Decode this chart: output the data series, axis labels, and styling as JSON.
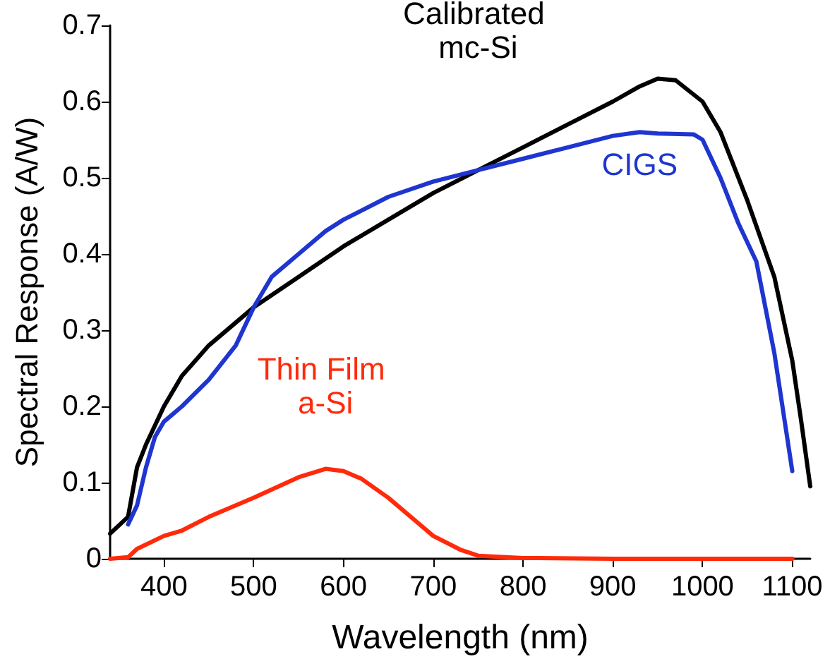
{
  "chart_data": {
    "type": "line",
    "xlabel": "Wavelength (nm)",
    "ylabel": "Spectral Response (A/W)",
    "xlim": [
      340,
      1120
    ],
    "xticks": [
      400,
      500,
      600,
      700,
      800,
      900,
      1000,
      1100
    ],
    "ylim": [
      0,
      0.7
    ],
    "yticks": [
      0,
      0.1,
      0.2,
      0.3,
      0.4,
      0.5,
      0.6,
      0.7
    ],
    "grid": false,
    "legend": false,
    "marker": "none",
    "line_style": "solid",
    "series": [
      {
        "name": "Calibrated mc-Si",
        "color": "#000000",
        "x": [
          340,
          360,
          370,
          380,
          400,
          420,
          450,
          500,
          550,
          600,
          650,
          700,
          750,
          800,
          850,
          900,
          930,
          950,
          970,
          1000,
          1020,
          1050,
          1080,
          1100,
          1110,
          1120
        ],
        "values": [
          0.033,
          0.055,
          0.12,
          0.15,
          0.2,
          0.24,
          0.28,
          0.33,
          0.37,
          0.41,
          0.445,
          0.48,
          0.51,
          0.54,
          0.57,
          0.6,
          0.62,
          0.63,
          0.628,
          0.6,
          0.56,
          0.47,
          0.37,
          0.26,
          0.18,
          0.095
        ]
      },
      {
        "name": "CIGS",
        "color": "#1f35d0",
        "x": [
          360,
          370,
          380,
          390,
          400,
          420,
          450,
          480,
          500,
          520,
          550,
          580,
          600,
          650,
          700,
          750,
          800,
          850,
          900,
          930,
          950,
          990,
          1000,
          1020,
          1040,
          1060,
          1080,
          1100
        ],
        "values": [
          0.045,
          0.07,
          0.12,
          0.16,
          0.18,
          0.2,
          0.235,
          0.28,
          0.33,
          0.37,
          0.4,
          0.43,
          0.445,
          0.475,
          0.495,
          0.51,
          0.525,
          0.54,
          0.555,
          0.56,
          0.558,
          0.557,
          0.55,
          0.5,
          0.44,
          0.39,
          0.27,
          0.115
        ]
      },
      {
        "name": "Thin Film a-Si",
        "color": "#ff2a0a",
        "x": [
          340,
          360,
          370,
          400,
          420,
          450,
          500,
          550,
          580,
          600,
          620,
          650,
          680,
          700,
          730,
          750,
          800,
          900,
          1000,
          1100
        ],
        "values": [
          0,
          0.002,
          0.013,
          0.03,
          0.037,
          0.055,
          0.08,
          0.107,
          0.118,
          0.115,
          0.105,
          0.08,
          0.05,
          0.03,
          0.012,
          0.004,
          0.001,
          0,
          0,
          0
        ]
      }
    ]
  }
}
